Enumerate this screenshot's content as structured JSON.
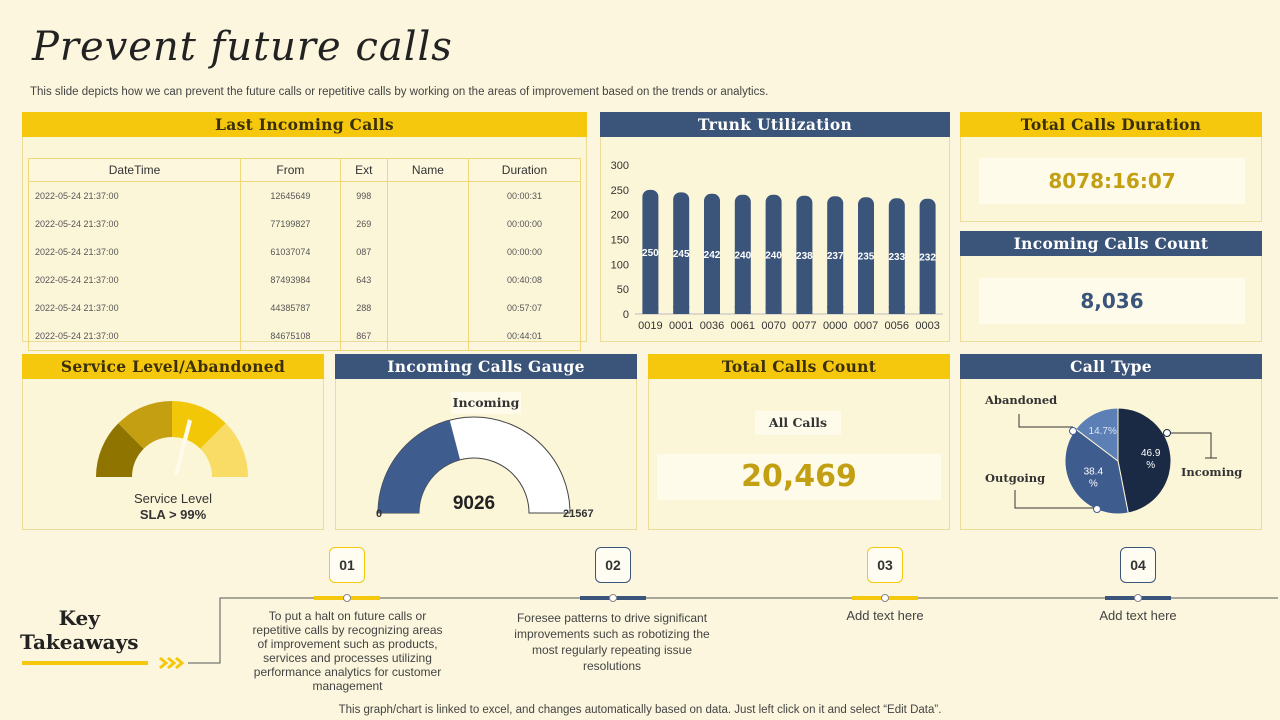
{
  "page": {
    "title": "Prevent future calls",
    "subtitle": "This slide depicts how we can prevent the future calls or repetitive calls by working on the areas of improvement based on the trends or analytics.",
    "footer": "This graph/chart is linked to excel,  and changes automatically based on data. Just left click on it and select “Edit Data”."
  },
  "colors": {
    "yellow": "#f5c80e",
    "navy": "#3b5479",
    "dark_navy": "#1b2a44",
    "gold_text": "#c29f13",
    "background": "#fbf6dd"
  },
  "last_calls": {
    "title": "Last Incoming Calls",
    "columns": [
      "DateTime",
      "From",
      "Ext",
      "Name",
      "Duration"
    ],
    "rows": [
      [
        "2022-05-24  21:37:00",
        "12645649",
        "998",
        "",
        "00:00:31"
      ],
      [
        "2022-05-24  21:37:00",
        "77199827",
        "269",
        "",
        "00:00:00"
      ],
      [
        "2022-05-24  21:37:00",
        "61037074",
        "087",
        "",
        "00:00:00"
      ],
      [
        "2022-05-24  21:37:00",
        "87493984",
        "643",
        "",
        "00:40:08"
      ],
      [
        "2022-05-24  21:37:00",
        "44385787",
        "288",
        "",
        "00:57:07"
      ],
      [
        "2022-05-24  21:37:00",
        "84675108",
        "867",
        "",
        "00:44:01"
      ]
    ]
  },
  "trunk": {
    "title": "Trunk Utilization"
  },
  "total_duration": {
    "title": "Total Calls Duration",
    "value": "8078:16:07"
  },
  "incoming_count": {
    "title": "Incoming Calls Count",
    "value": "8,036"
  },
  "service_level": {
    "title": "Service Level/Abandoned",
    "label_line1": "Service Level",
    "label_line2": "SLA > 99%"
  },
  "gauge": {
    "title": "Incoming Calls Gauge",
    "label": "Incoming",
    "value": "9026",
    "min": "0",
    "max": "21567",
    "fraction": 0.4185
  },
  "total_count": {
    "title": "Total Calls Count",
    "label": "All Calls",
    "value": "20,469"
  },
  "call_type": {
    "title": "Call Type",
    "labels": {
      "abandoned": "Abandoned",
      "outgoing": "Outgoing",
      "incoming": "Incoming"
    },
    "slices": [
      {
        "name": "Incoming",
        "value": 46.9,
        "text": "46.9\n%"
      },
      {
        "name": "Outgoing",
        "value": 38.4,
        "text": "38.4\n%"
      },
      {
        "name": "Abandoned",
        "value": 14.7,
        "text": "14.7%"
      }
    ]
  },
  "takeaways": {
    "title_line1": "Key",
    "title_line2": "Takeaways",
    "steps": [
      {
        "num": "01",
        "text": "To put a halt on future calls or repetitive calls by recognizing areas of improvement such as products, services and processes utilizing performance analytics for customer management"
      },
      {
        "num": "02",
        "text": "Foresee patterns to drive significant improvements  such as  robotizing the most regularly repeating  issue resolutions"
      },
      {
        "num": "03",
        "text": "Add text here"
      },
      {
        "num": "04",
        "text": "Add text here"
      }
    ]
  },
  "chart_data": [
    {
      "type": "bar",
      "title": "Trunk Utilization",
      "categories": [
        "0019",
        "0001",
        "0036",
        "0061",
        "0070",
        "0077",
        "0000",
        "0007",
        "0056",
        "0003"
      ],
      "values": [
        250,
        245,
        242,
        240,
        240,
        238,
        237,
        235,
        233,
        232
      ],
      "ylim": [
        0,
        300
      ],
      "yticks": [
        0,
        50,
        100,
        150,
        200,
        250,
        300
      ]
    },
    {
      "type": "pie",
      "title": "Call Type",
      "categories": [
        "Incoming",
        "Outgoing",
        "Abandoned"
      ],
      "values": [
        46.9,
        38.4,
        14.7
      ]
    }
  ]
}
